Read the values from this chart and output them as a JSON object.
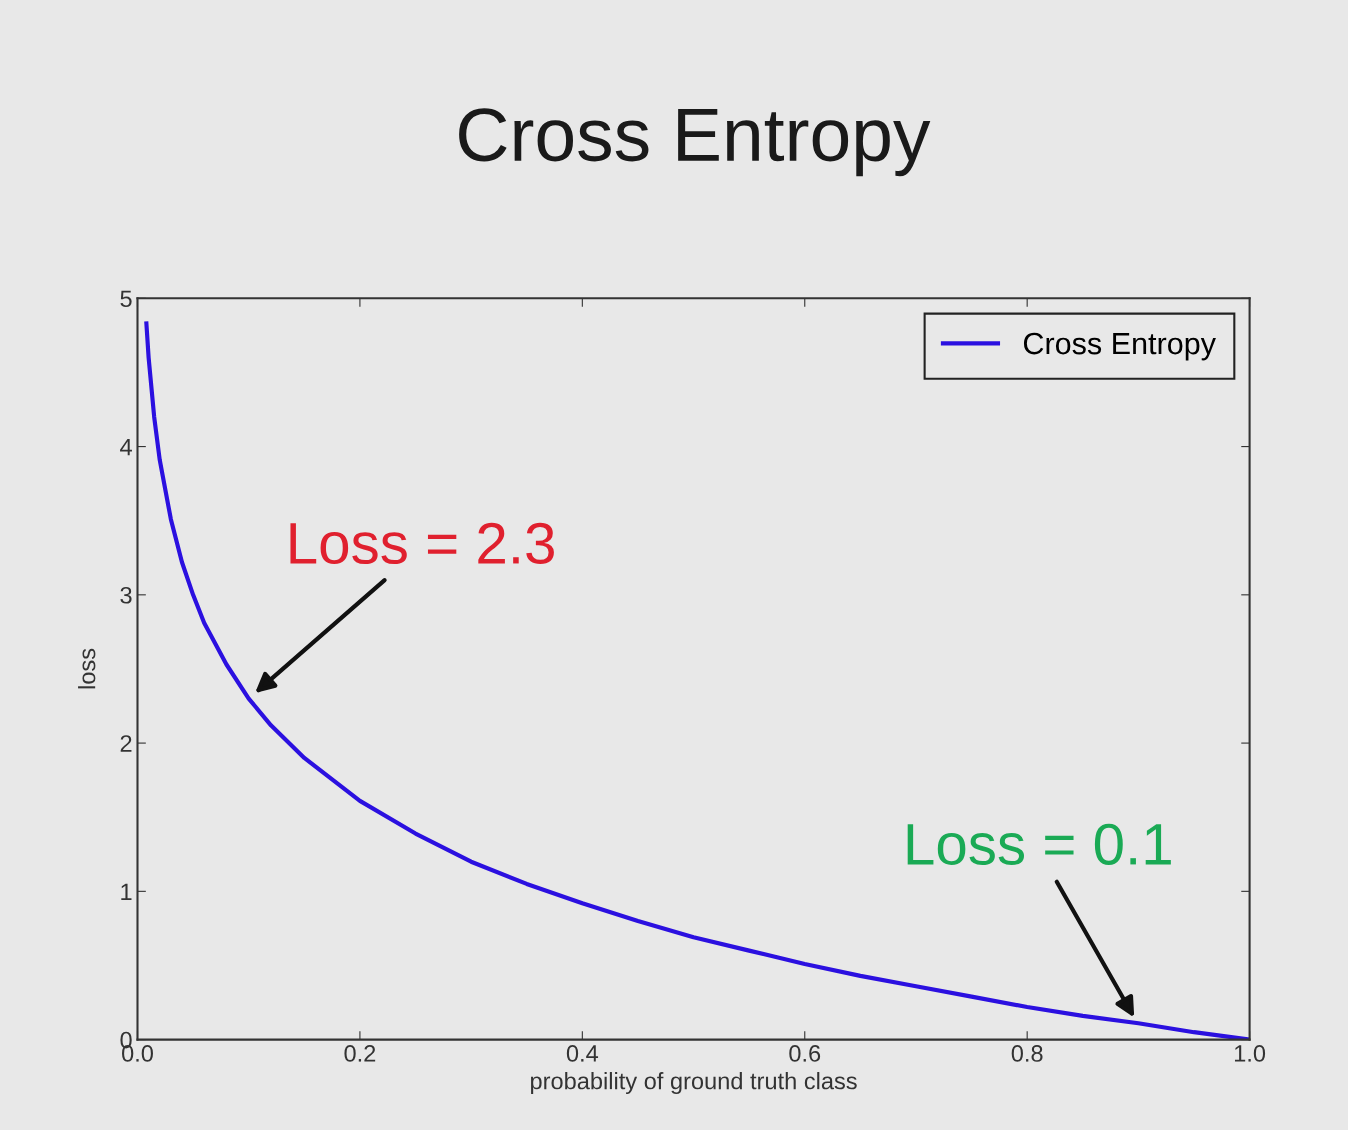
{
  "chart_data": {
    "type": "line",
    "title": "Cross Entropy",
    "xlabel": "probability of ground truth class",
    "ylabel": "loss",
    "xlim": [
      0.0,
      1.0
    ],
    "xticks": [
      {
        "value": 0,
        "label": "0.0"
      },
      0.2,
      0.4,
      0.6,
      0.8,
      {
        "value": 1,
        "label": "1.0"
      }
    ],
    "ylim": [
      0,
      5
    ],
    "yticks": [
      0,
      1,
      2,
      3,
      4,
      5
    ],
    "series": [
      {
        "name": "Cross Entropy",
        "color": "#2b10e0",
        "x": [
          0.008,
          0.01,
          0.015,
          0.02,
          0.03,
          0.04,
          0.05,
          0.06,
          0.08,
          0.1,
          0.12,
          0.15,
          0.2,
          0.25,
          0.3,
          0.35,
          0.4,
          0.45,
          0.5,
          0.55,
          0.6,
          0.65,
          0.7,
          0.75,
          0.8,
          0.85,
          0.9,
          0.95,
          1.0
        ],
        "values": [
          4.83,
          4.6,
          4.2,
          3.91,
          3.51,
          3.22,
          3.0,
          2.81,
          2.53,
          2.3,
          2.12,
          1.9,
          1.61,
          1.39,
          1.2,
          1.05,
          0.92,
          0.8,
          0.69,
          0.6,
          0.51,
          0.43,
          0.36,
          0.29,
          0.22,
          0.16,
          0.11,
          0.05,
          0.0
        ]
      }
    ],
    "annotations": [
      {
        "text": "Loss = 2.3",
        "x": 0.1,
        "y": 2.3
      },
      {
        "text": "Loss = 0.1",
        "x": 0.9,
        "y": 0.1
      }
    ],
    "legend": "top right",
    "grid": false,
    "marker": "none",
    "line_style": "solid"
  }
}
